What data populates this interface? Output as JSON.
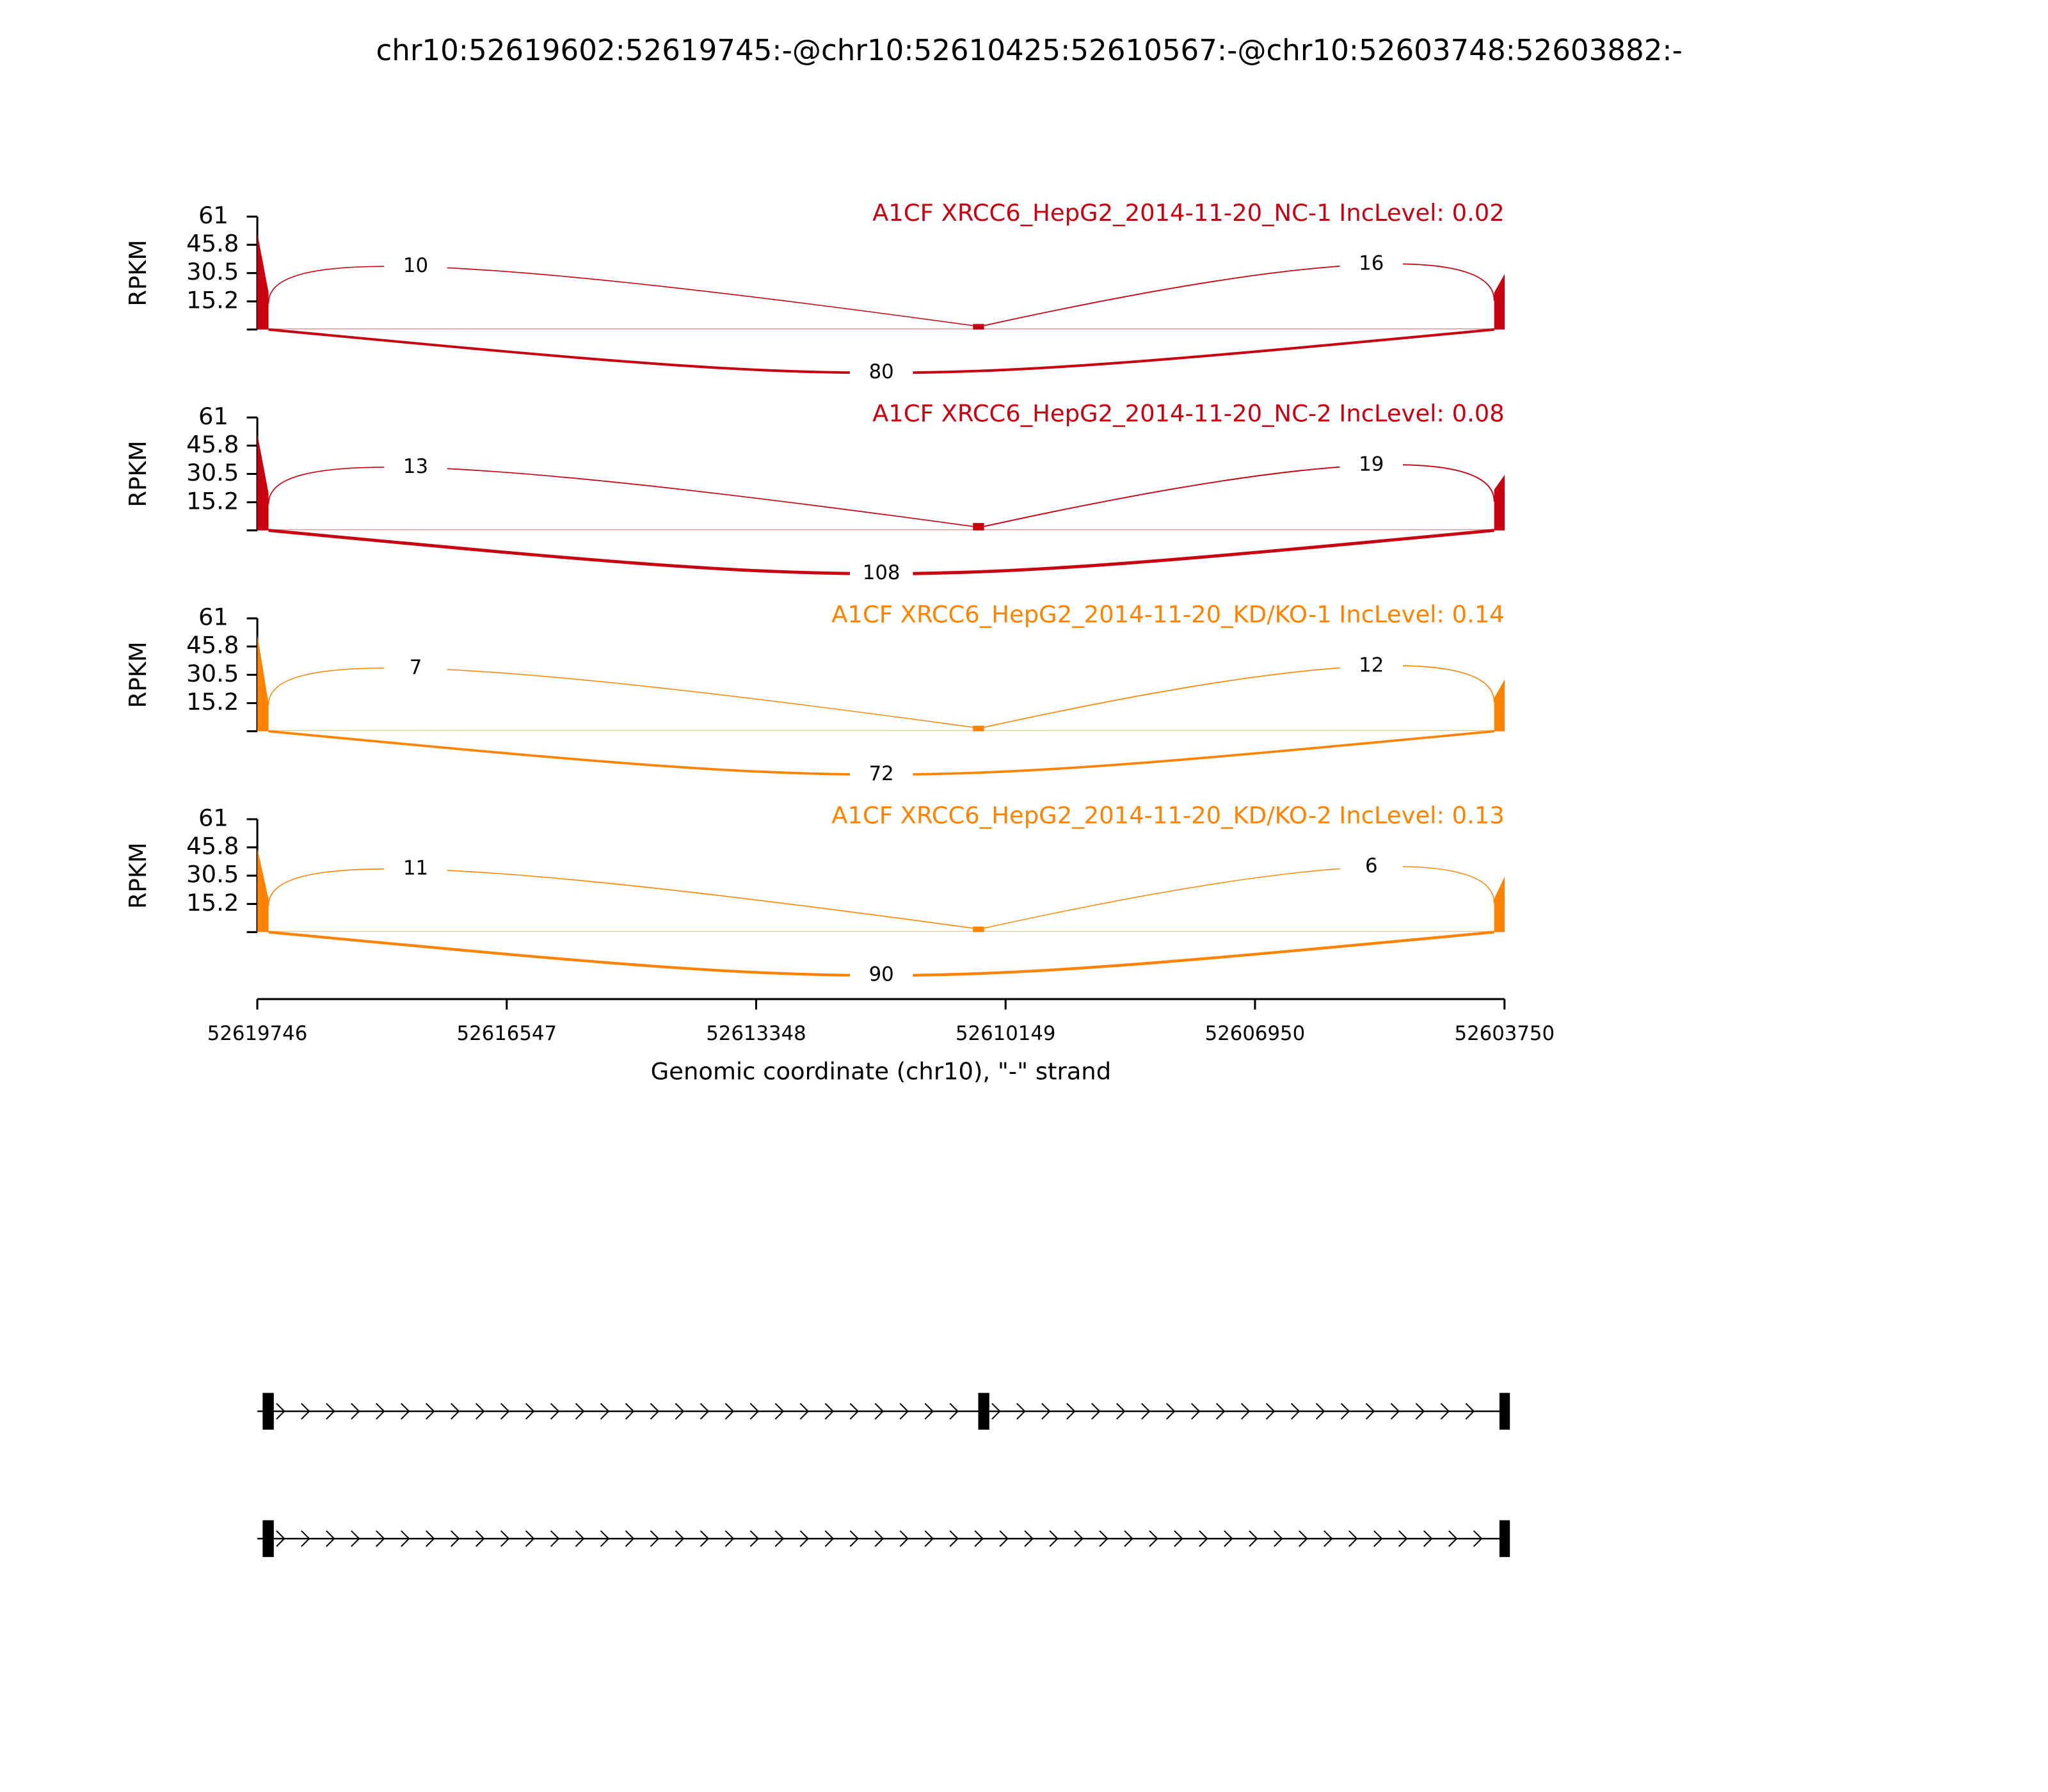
{
  "chart_data": {
    "type": "sashimi",
    "title": "chr10:52619602:52619745:-@chr10:52610425:52610567:-@chr10:52603748:52603882:-",
    "xlabel": "Genomic coordinate (chr10), \"-\" strand",
    "ylabel": "RPKM",
    "xlim": [
      52619746,
      52603750
    ],
    "xticks": [
      52619746,
      52616547,
      52613348,
      52610149,
      52606950,
      52603750
    ],
    "ylim": [
      0,
      61
    ],
    "yticks": [
      15.2,
      30.5,
      45.8,
      61
    ],
    "exons": [
      [
        52619602,
        52619745
      ],
      [
        52610425,
        52610567
      ],
      [
        52603748,
        52603882
      ]
    ],
    "isoforms": [
      [
        0,
        1,
        2
      ],
      [
        0,
        2
      ]
    ],
    "panels": [
      {
        "name": "A1CF XRCC6_HepG2_2014-11-20_NC-1 IncLevel: 0.02",
        "color": "#c8000f",
        "coverage": [
          [
            52,
            20
          ],
          [
            3,
            3
          ],
          [
            20,
            30
          ]
        ],
        "junctions": [
          10,
          16,
          80
        ]
      },
      {
        "name": "A1CF XRCC6_HepG2_2014-11-20_NC-2 IncLevel: 0.08",
        "color": "#c8000f",
        "coverage": [
          [
            52,
            20
          ],
          [
            4,
            4
          ],
          [
            22,
            30
          ]
        ],
        "junctions": [
          13,
          19,
          108
        ]
      },
      {
        "name": "A1CF XRCC6_HepG2_2014-11-20_KD/KO-1 IncLevel: 0.14",
        "color": "#ff8200",
        "coverage": [
          [
            52,
            15
          ],
          [
            3,
            3
          ],
          [
            18,
            28
          ]
        ],
        "junctions": [
          7,
          12,
          72
        ]
      },
      {
        "name": "A1CF XRCC6_HepG2_2014-11-20_KD/KO-2 IncLevel: 0.13",
        "color": "#ff8200",
        "coverage": [
          [
            45,
            18
          ],
          [
            3,
            3
          ],
          [
            18,
            30
          ]
        ],
        "junctions": [
          11,
          6,
          90
        ]
      }
    ]
  }
}
